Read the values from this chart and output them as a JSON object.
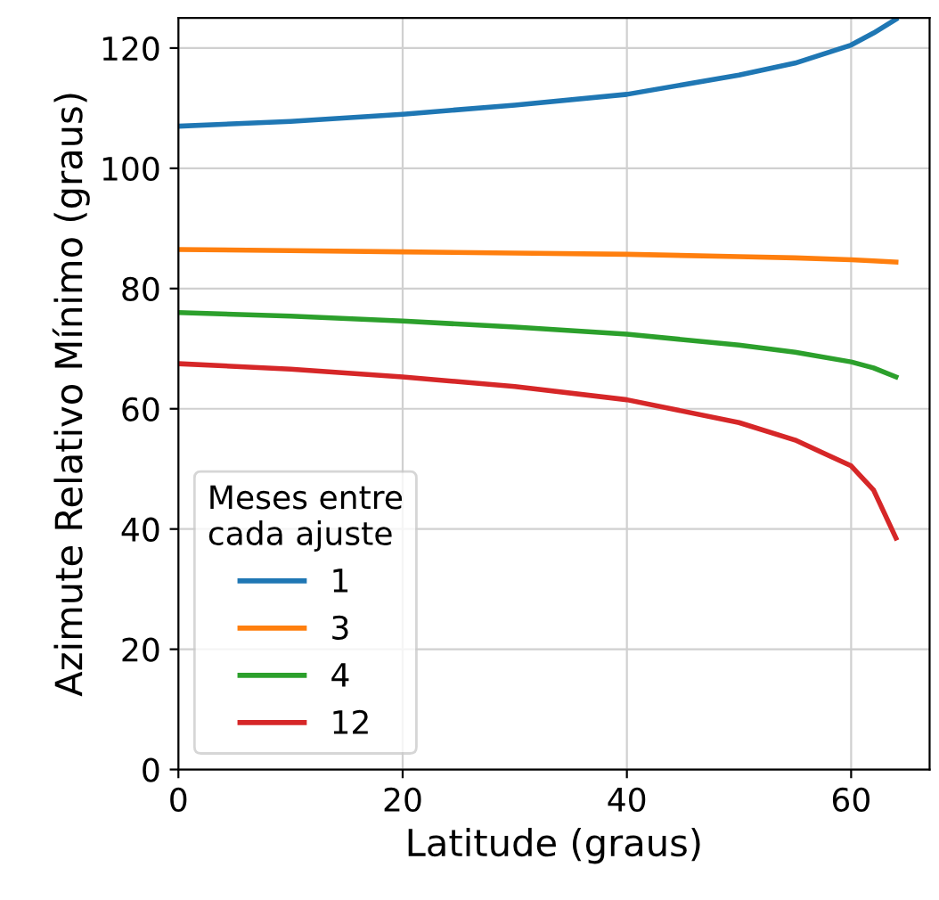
{
  "chart_data": {
    "type": "line",
    "xlabel": "Latitude (graus)",
    "ylabel": "Azimute Relativo Mínimo (graus)",
    "legend_title": "Meses entre\ncada ajuste",
    "legend": "bottom left",
    "grid": true,
    "x": [
      0,
      10,
      20,
      30,
      40,
      50,
      55,
      60,
      62,
      64
    ],
    "xlim": [
      0,
      67
    ],
    "xticks": [
      0,
      20,
      40,
      60
    ],
    "ylim": [
      0,
      125
    ],
    "yticks": [
      0,
      20,
      40,
      60,
      80,
      100,
      120
    ],
    "series": [
      {
        "name": "1",
        "color": "#1f77b4",
        "values": [
          107,
          107.8,
          109,
          110.5,
          112.3,
          115.5,
          117.5,
          120.5,
          122.5,
          124.8
        ]
      },
      {
        "name": "3",
        "color": "#ff7f0e",
        "values": [
          86.5,
          86.3,
          86.1,
          85.9,
          85.7,
          85.3,
          85.1,
          84.8,
          84.6,
          84.4
        ]
      },
      {
        "name": "4",
        "color": "#2ca02c",
        "values": [
          76,
          75.4,
          74.6,
          73.6,
          72.4,
          70.6,
          69.4,
          67.8,
          66.8,
          65.3
        ]
      },
      {
        "name": "12",
        "color": "#d62728",
        "values": [
          67.5,
          66.6,
          65.3,
          63.7,
          61.5,
          57.7,
          54.8,
          50.5,
          46.5,
          38.5
        ]
      }
    ]
  }
}
